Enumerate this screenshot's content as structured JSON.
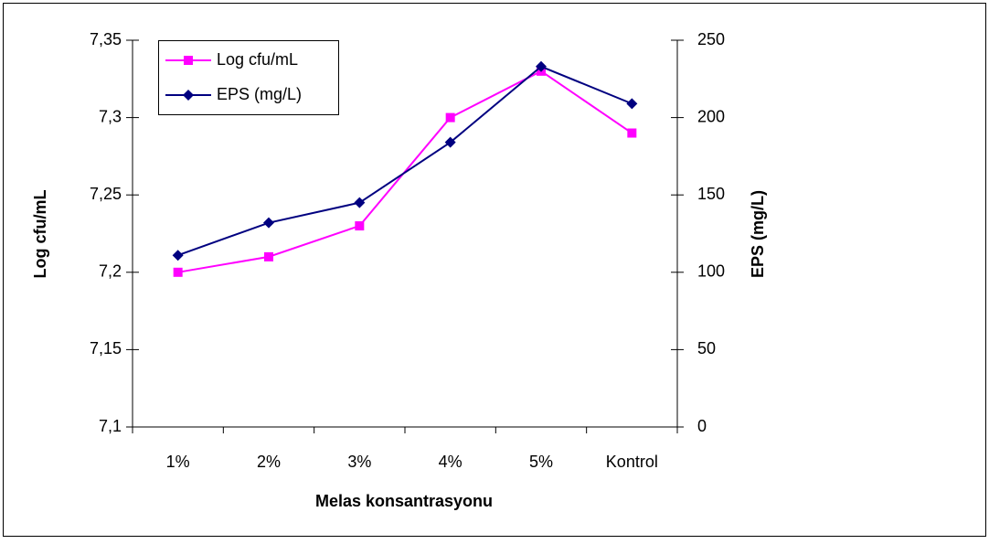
{
  "chart_data": {
    "type": "line",
    "xlabel": "Melas konsantrasyonu",
    "ylabel": "Log cfu/mL",
    "y2label": "EPS (mg/L)",
    "categories": [
      "1%",
      "2%",
      "3%",
      "4%",
      "5%",
      "Kontrol"
    ],
    "series": [
      {
        "name": "Log cfu/mL",
        "color": "#ff00ff",
        "marker": "square",
        "values": [
          7.2,
          7.21,
          7.23,
          7.3,
          7.33,
          7.29
        ]
      },
      {
        "name": "EPS (mg/L)",
        "color": "#000080",
        "marker": "diamond",
        "axis": "y2",
        "values": [
          111,
          132,
          145,
          184,
          233,
          209
        ]
      }
    ],
    "ylim": [
      7.1,
      7.35
    ],
    "yticks": [
      {
        "value": 7.1,
        "label": "7,1"
      },
      {
        "value": 7.15,
        "label": "7,15"
      },
      {
        "value": 7.2,
        "label": "7,2"
      },
      {
        "value": 7.25,
        "label": "7,25"
      },
      {
        "value": 7.3,
        "label": "7,3"
      },
      {
        "value": 7.35,
        "label": "7,35"
      }
    ],
    "y2lim": [
      0,
      250
    ],
    "y2ticks": [
      0,
      50,
      100,
      150,
      200,
      250
    ],
    "grid": false,
    "legend": "top-left"
  }
}
